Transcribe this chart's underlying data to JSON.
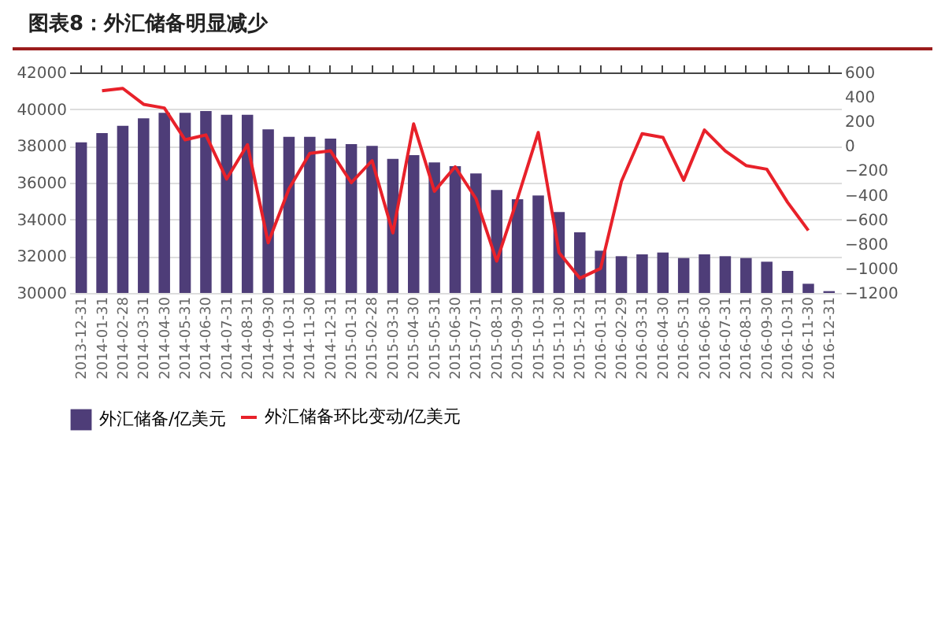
{
  "chart_data": {
    "type": "bar",
    "title": "图表8：外汇储备明显减少",
    "categories": [
      "2013-12-31",
      "2014-01-31",
      "2014-02-28",
      "2014-03-31",
      "2014-04-30",
      "2014-05-31",
      "2014-06-30",
      "2014-07-31",
      "2014-08-31",
      "2014-09-30",
      "2014-10-31",
      "2014-11-30",
      "2014-12-31",
      "2015-01-31",
      "2015-02-28",
      "2015-03-31",
      "2015-04-30",
      "2015-05-31",
      "2015-06-30",
      "2015-07-31",
      "2015-08-31",
      "2015-09-30",
      "2015-10-31",
      "2015-11-30",
      "2015-12-31",
      "2016-01-31",
      "2016-02-29",
      "2016-03-31",
      "2016-04-30",
      "2016-05-31",
      "2016-06-30",
      "2016-07-31",
      "2016-08-31",
      "2016-09-30",
      "2016-10-31",
      "2016-11-30",
      "2016-12-31"
    ],
    "series": [
      {
        "name": "外汇储备/亿美元",
        "color": "#4e3d78",
        "values": [
          38200,
          38700,
          39100,
          39500,
          39800,
          39800,
          39900,
          39700,
          39700,
          38900,
          38500,
          38500,
          38400,
          38100,
          38000,
          37300,
          37500,
          37100,
          36900,
          36500,
          35600,
          35100,
          35300,
          34400,
          33300,
          32300,
          32000,
          32100,
          32200,
          31900,
          32100,
          32000,
          31900,
          31700,
          31200,
          30500,
          30100
        ]
      },
      {
        "name": "外汇储备环比变动/亿美元",
        "type": "line",
        "axis": "y2",
        "color": "#e8212a",
        "values": [
          null,
          450,
          470,
          340,
          310,
          50,
          90,
          -270,
          10,
          -790,
          -350,
          -60,
          -40,
          -300,
          -120,
          -710,
          180,
          -370,
          -170,
          -430,
          -940,
          -430,
          110,
          -870,
          -1080,
          -1000,
          -290,
          100,
          70,
          -280,
          130,
          -40,
          -160,
          -190,
          -460,
          -690,
          null
        ]
      }
    ],
    "ylim": [
      30000,
      42000
    ],
    "yticks": [
      30000,
      32000,
      34000,
      36000,
      38000,
      40000,
      42000
    ],
    "y2lim": [
      -1200,
      600
    ],
    "y2ticks": [
      -1200,
      -1000,
      -800,
      -600,
      -400,
      -200,
      0,
      200,
      400,
      600
    ],
    "grid": "y",
    "legend": "bottom",
    "marker": "none"
  }
}
